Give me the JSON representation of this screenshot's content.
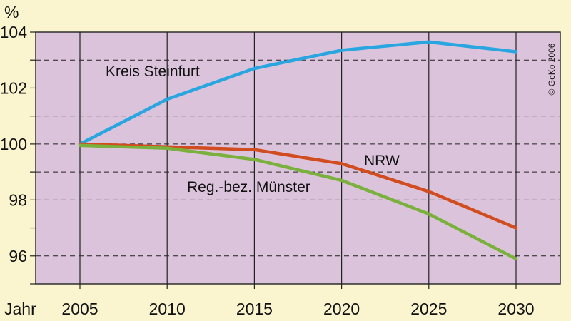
{
  "chart_data": {
    "type": "line",
    "x": [
      2005,
      2010,
      2015,
      2020,
      2025,
      2030
    ],
    "xlabel": "Jahr",
    "ylabel": "%",
    "ylim": [
      95,
      104
    ],
    "yticks": [
      96,
      98,
      100,
      102,
      104
    ],
    "grid": "vertical solid at years, dashed horizontal every 1",
    "series": [
      {
        "name": "Kreis Steinfurt",
        "values": [
          100,
          101.6,
          102.7,
          103.35,
          103.65,
          103.3
        ],
        "color": "#29a6e0"
      },
      {
        "name": "NRW",
        "values": [
          100,
          99.9,
          99.8,
          99.3,
          98.3,
          97.0
        ],
        "color": "#d14d1f"
      },
      {
        "name": "Reg.-bez. Münster",
        "values": [
          99.95,
          99.85,
          99.45,
          98.7,
          97.5,
          95.9
        ],
        "color": "#7ab03c"
      }
    ],
    "copyright": "© GeKo 2006",
    "background_color": "#dcc3dc",
    "page_color": "#fbf5cf"
  }
}
